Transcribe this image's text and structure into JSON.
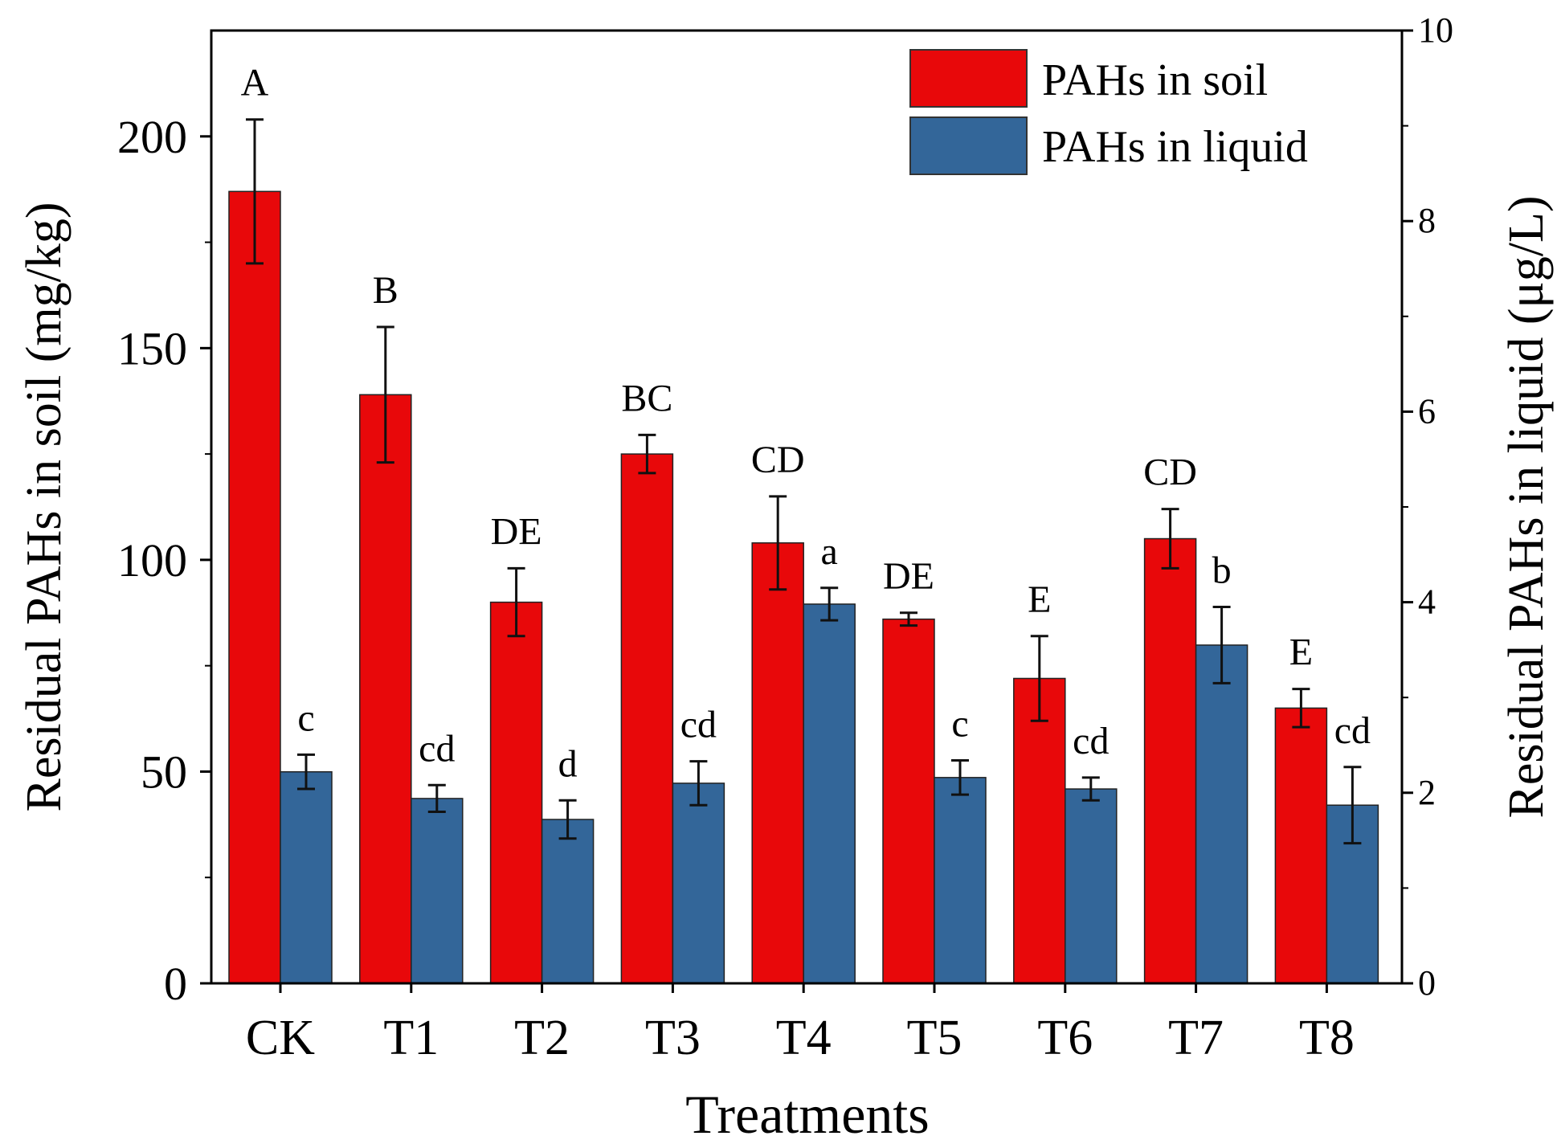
{
  "chart_data": {
    "type": "bar",
    "xlabel": "Treatments",
    "categories": [
      "CK",
      "T1",
      "T2",
      "T3",
      "T4",
      "T5",
      "T6",
      "T7",
      "T8"
    ],
    "y_left": {
      "label": "Residual PAHs in soil (mg/kg)",
      "lim": [
        0,
        225
      ],
      "ticks": [
        0,
        50,
        100,
        150,
        200
      ]
    },
    "y_right": {
      "label": "Residual PAHs in liquid  (μg/L)",
      "lim": [
        0,
        10
      ],
      "ticks": [
        0,
        2,
        4,
        6,
        8,
        10
      ]
    },
    "series": [
      {
        "name": "PAHs in soil",
        "axis": "left",
        "color": "#e8080a",
        "values": [
          187,
          139,
          90,
          125,
          104,
          86,
          72,
          105,
          65
        ],
        "errors": [
          17,
          16,
          8,
          4.5,
          11,
          1.5,
          10,
          7,
          4.5
        ],
        "letters": [
          "A",
          "B",
          "DE",
          "BC",
          "CD",
          "DE",
          "E",
          "CD",
          "E"
        ]
      },
      {
        "name": "PAHs in liquid",
        "axis": "right",
        "color": "#336699",
        "values": [
          2.22,
          1.94,
          1.72,
          2.1,
          3.98,
          2.16,
          2.04,
          3.55,
          1.87
        ],
        "errors": [
          0.18,
          0.14,
          0.2,
          0.23,
          0.17,
          0.18,
          0.12,
          0.4,
          0.4
        ],
        "letters": [
          "c",
          "cd",
          "d",
          "cd",
          "a",
          "c",
          "cd",
          "b",
          "cd"
        ]
      }
    ],
    "legend_position": "top-right"
  }
}
